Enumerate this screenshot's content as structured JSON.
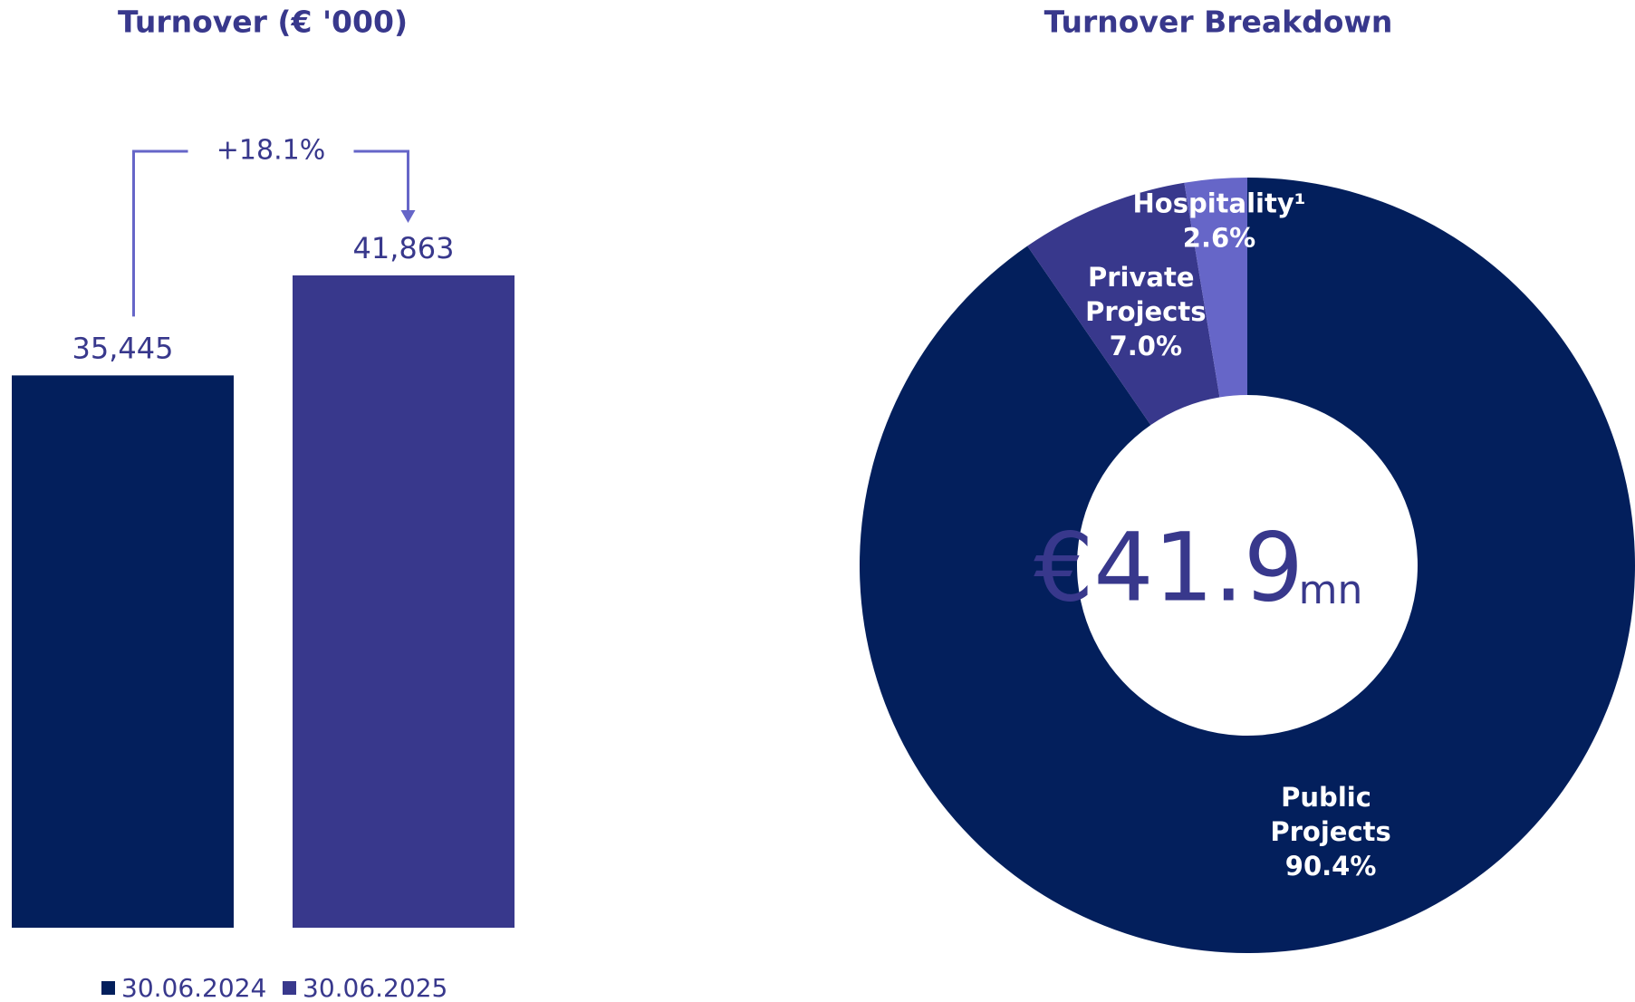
{
  "chart_data": [
    {
      "type": "bar",
      "title": "Turnover (€ '000)",
      "annotation": "+18.1%",
      "series": [
        {
          "name": "30.06.2024",
          "color": "#031f5c",
          "values": [
            35445
          ],
          "value_labels": [
            "35,445"
          ]
        },
        {
          "name": "30.06.2025",
          "color": "#38388c",
          "values": [
            41863
          ],
          "value_labels": [
            "41,863"
          ]
        }
      ]
    },
    {
      "type": "donut",
      "title": "Turnover Breakdown",
      "center_label": "€41.9",
      "center_unit": "mn",
      "categories": [
        "Public Projects",
        "Private Projects",
        "Hospitality¹"
      ],
      "values": [
        90.4,
        7.0,
        2.6
      ],
      "value_labels": [
        "90.4%",
        "7.0%",
        "2.6%"
      ],
      "colors": [
        "#031f5c",
        "#38388c",
        "#6666c8"
      ]
    }
  ]
}
